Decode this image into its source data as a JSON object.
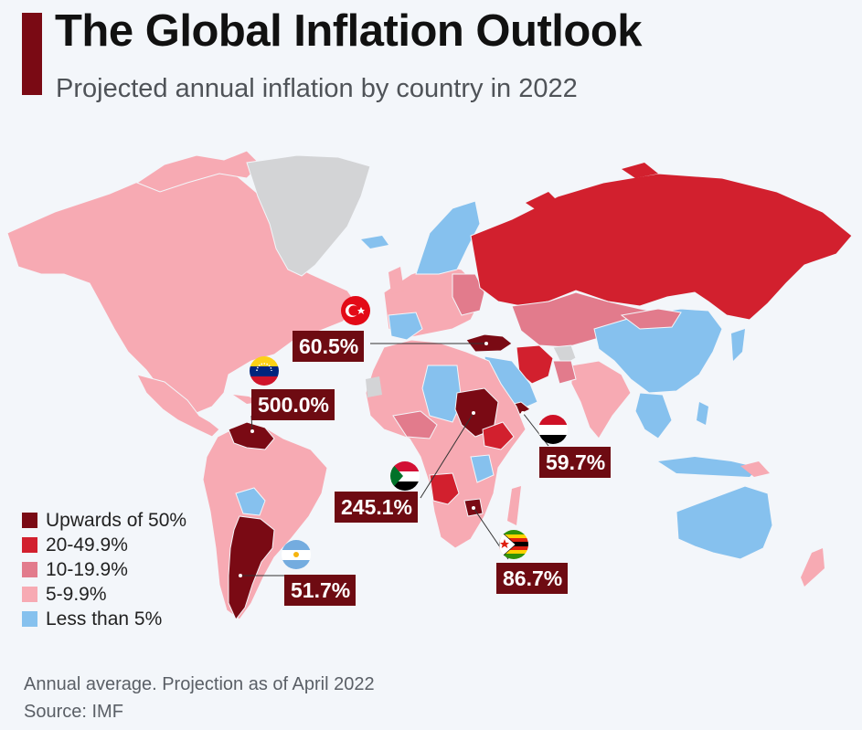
{
  "header": {
    "title": "The Global Inflation Outlook",
    "subtitle": "Projected annual inflation by country in 2022"
  },
  "colors": {
    "upwards_50": "#7a0a14",
    "band_20_49": "#d2202e",
    "band_10_19": "#e27b8c",
    "band_5_9": "#f7aab3",
    "below_5": "#86c1ee",
    "no_data": "#d3d4d6",
    "accent_bar": "#7a0a14"
  },
  "legend": {
    "items": [
      {
        "label": "Upwards of 50%",
        "color": "#7a0a14"
      },
      {
        "label": "20-49.9%",
        "color": "#d2202e"
      },
      {
        "label": "10-19.9%",
        "color": "#e27b8c"
      },
      {
        "label": "5-9.9%",
        "color": "#f7aab3"
      },
      {
        "label": "Less than 5%",
        "color": "#86c1ee"
      }
    ]
  },
  "callouts": {
    "turkey": {
      "value": "60.5%",
      "flag": "turkey-flag-icon"
    },
    "venezuela": {
      "value": "500.0%",
      "flag": "venezuela-flag-icon"
    },
    "yemen": {
      "value": "59.7%",
      "flag": "yemen-flag-icon"
    },
    "sudan": {
      "value": "245.1%",
      "flag": "sudan-flag-icon"
    },
    "zimbabwe": {
      "value": "86.7%",
      "flag": "zimbabwe-flag-icon"
    },
    "argentina": {
      "value": "51.7%",
      "flag": "argentina-flag-icon"
    }
  },
  "footer": {
    "note": "Annual average. Projection as of April 2022",
    "source": "Source: IMF"
  }
}
